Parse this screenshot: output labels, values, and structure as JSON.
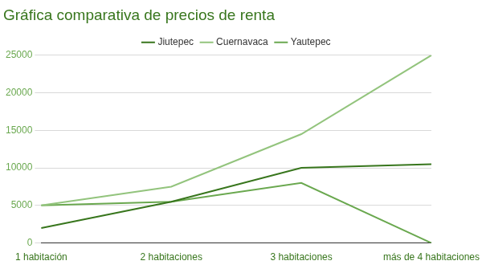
{
  "chart_data": {
    "type": "line",
    "title": "Gráfica comparativa de precios de renta",
    "categories": [
      "1 habitación",
      "2 habitaciones",
      "3 habitaciones",
      "más de 4 habitaciones"
    ],
    "series": [
      {
        "name": "Jiutepec",
        "color": "#38761d",
        "values": [
          2000,
          5500,
          10000,
          10500
        ]
      },
      {
        "name": "Cuernavaca",
        "color": "#93c47d",
        "values": [
          5000,
          7500,
          14500,
          25000
        ]
      },
      {
        "name": "Yautepec",
        "color": "#6aa84f",
        "values": [
          5000,
          5500,
          8000,
          0
        ]
      }
    ],
    "ylim": [
      0,
      25000
    ],
    "yticks": [
      0,
      5000,
      10000,
      15000,
      20000,
      25000
    ],
    "grid": true,
    "legend": "top",
    "marker": "none"
  }
}
